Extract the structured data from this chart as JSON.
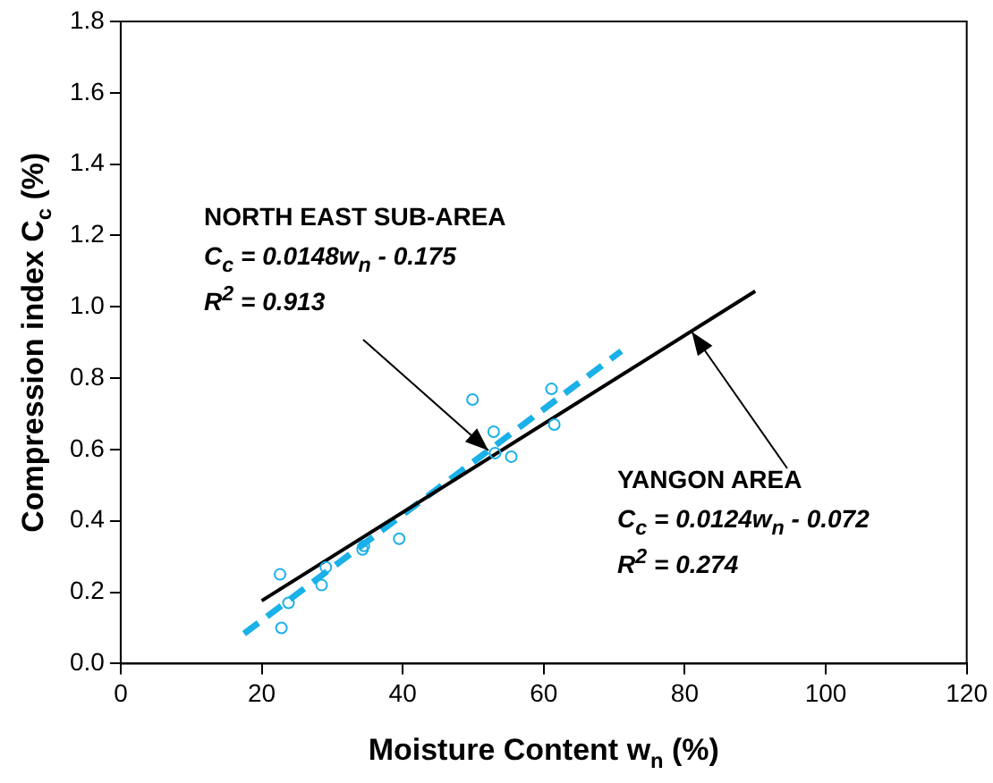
{
  "chart_data": {
    "type": "scatter",
    "xlabel": "Moisture Content w$_{n}$ (%)",
    "ylabel": "Compression index C$_{c}$ (%)",
    "xlim": [
      0,
      120
    ],
    "xticks": [
      0,
      20,
      40,
      60,
      80,
      100,
      120
    ],
    "ylim": [
      0,
      1.8
    ],
    "yticks": [
      {
        "value": 0,
        "label": "0.0"
      },
      {
        "value": 0.2,
        "label": "0.2"
      },
      {
        "value": 0.4,
        "label": "0.4"
      },
      {
        "value": 0.6,
        "label": "0.6"
      },
      {
        "value": 0.8,
        "label": "0.8"
      },
      {
        "value": 1,
        "label": "1.0"
      },
      {
        "value": 1.2,
        "label": "1.2"
      },
      {
        "value": 1.4,
        "label": "1.4"
      },
      {
        "value": 1.6,
        "label": "1.6"
      },
      {
        "value": 1.8,
        "label": "1.8"
      }
    ],
    "grid": false,
    "legend": false,
    "marker": "circle",
    "series": [
      {
        "color": "#1ab0e8",
        "x": [
          22.6,
          23.8,
          22.8,
          28.5,
          29.1,
          34.3,
          34.5,
          39.5,
          49.9,
          52.9,
          53.1,
          55.4,
          61.1,
          61.5
        ],
        "values": [
          0.25,
          0.17,
          0.1,
          0.22,
          0.27,
          0.32,
          0.33,
          0.35,
          0.74,
          0.65,
          0.59,
          0.58,
          0.77,
          0.67
        ]
      },
      {
        "type": "line",
        "color": "#000000",
        "line_style": "solid",
        "marker": "none",
        "x": [
          20,
          90
        ],
        "values": [
          0.176,
          1.044
        ]
      },
      {
        "type": "line",
        "color": "#1ab0e8",
        "line_style": "dashed",
        "marker": "none",
        "x": [
          17.5,
          71
        ],
        "values": [
          0.084,
          0.876
        ]
      }
    ],
    "annotations": [
      "NORTH EAST SUB-AREA",
      "C$_{c}$ = 0.0148w$_{n}$ - 0.175",
      "R$^{2}$ = 0.913",
      {
        "text": "YANGON AREA",
        "x": 81,
        "y": 0.93
      },
      "C$_{c}$ = 0.0124w$_{n}$ - 0.072",
      "R$^{2}$ = 0.274"
    ]
  }
}
